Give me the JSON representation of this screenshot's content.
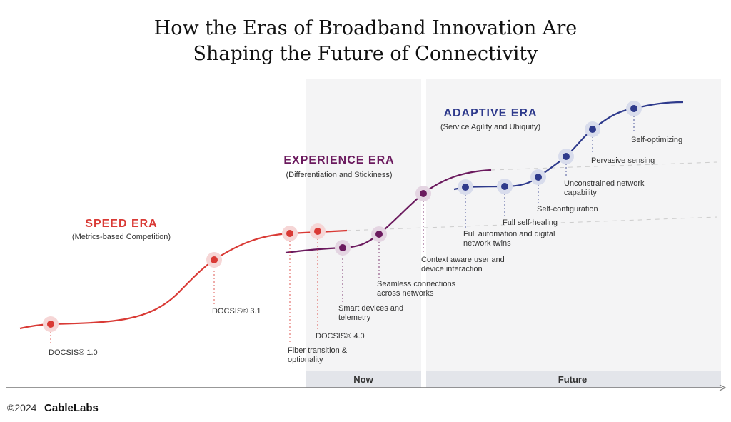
{
  "title": [
    "How the Eras of Broadband Innovation Are",
    "Shaping the Future of Connectivity"
  ],
  "colors": {
    "speed": "#d93a35",
    "speed_halo": "#f6d6d6",
    "experience": "#6b1a5e",
    "experience_halo": "#e4d5e2",
    "adaptive": "#2e3a8c",
    "adaptive_halo": "#d8dcec",
    "panel": "#f4f4f5",
    "band": "#e3e5ea"
  },
  "eras": [
    {
      "key": "speed",
      "name": "SPEED ERA",
      "subtitle": "(Metrics-based Competition)"
    },
    {
      "key": "experience",
      "name": "EXPERIENCE ERA",
      "subtitle": "(Differentiation and Stickiness)"
    },
    {
      "key": "adaptive",
      "name": "ADAPTIVE ERA",
      "subtitle": "(Service Agility and Ubiquity)"
    }
  ],
  "milestones": [
    {
      "era": "speed",
      "label": [
        "DOCSIS® 1.0"
      ]
    },
    {
      "era": "speed",
      "label": [
        "DOCSIS® 3.1"
      ]
    },
    {
      "era": "speed",
      "label": [
        "Fiber transition &",
        "optionality"
      ]
    },
    {
      "era": "speed",
      "label": [
        "DOCSIS® 4.0"
      ]
    },
    {
      "era": "experience",
      "label": [
        "Smart devices and",
        "telemetry"
      ]
    },
    {
      "era": "experience",
      "label": [
        "Seamless connections",
        "across networks"
      ]
    },
    {
      "era": "experience",
      "label": [
        "Context aware user and",
        "device interaction"
      ]
    },
    {
      "era": "adaptive",
      "label": [
        "Full automation and digital",
        "network twins"
      ]
    },
    {
      "era": "adaptive",
      "label": [
        "Full self-healing"
      ]
    },
    {
      "era": "adaptive",
      "label": [
        "Self-configuration"
      ]
    },
    {
      "era": "adaptive",
      "label": [
        "Unconstrained network",
        "capability"
      ]
    },
    {
      "era": "adaptive",
      "label": [
        "Pervasive sensing"
      ]
    },
    {
      "era": "adaptive",
      "label": [
        "Self-optimizing"
      ]
    }
  ],
  "timeline": {
    "now": "Now",
    "future": "Future"
  },
  "footer": {
    "copyright": "©2024",
    "brand": "CableLabs"
  }
}
